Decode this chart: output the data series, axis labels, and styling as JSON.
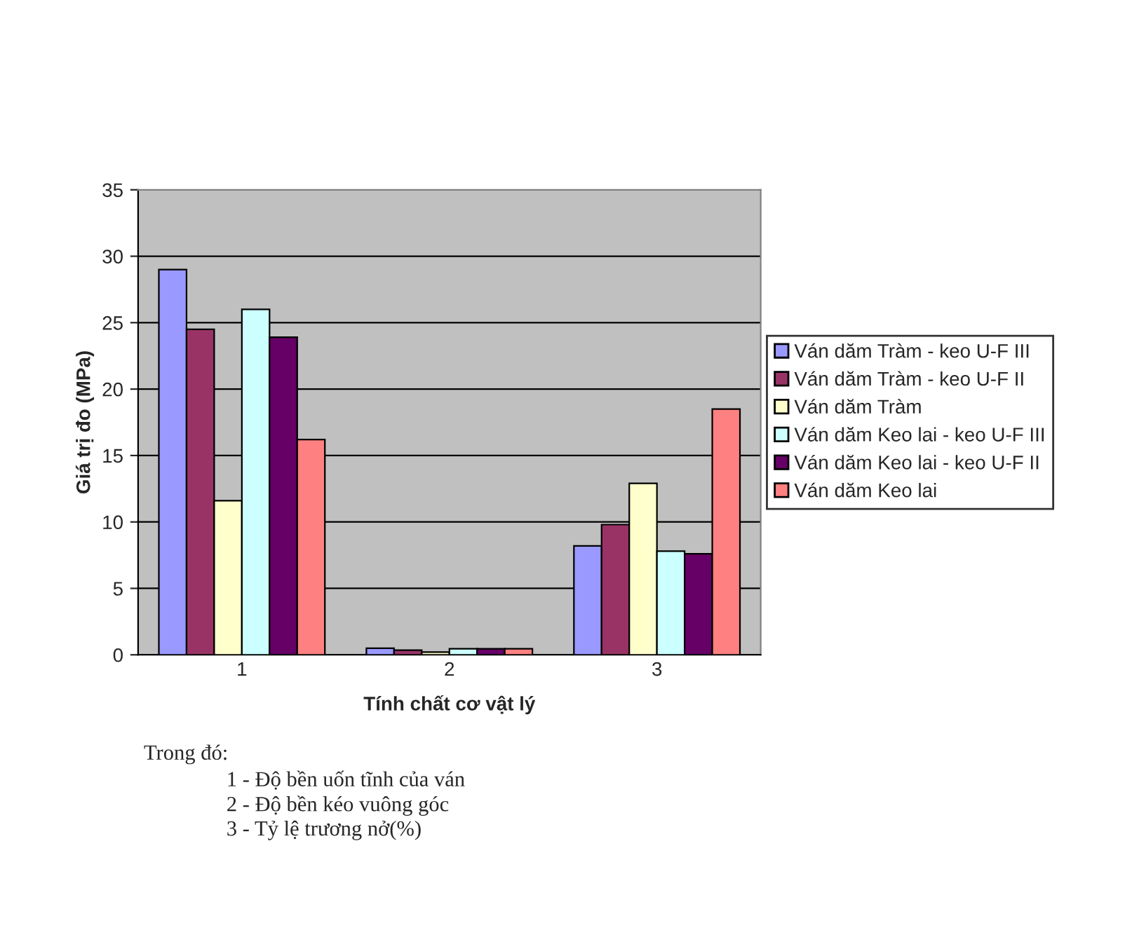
{
  "chart_data": {
    "type": "bar",
    "xlabel": "Tính chất cơ vật lý",
    "ylabel": "Giá trị đo (MPa)",
    "categories": [
      "1",
      "2",
      "3"
    ],
    "series": [
      {
        "name": "Ván dăm Tràm - keo U-F III",
        "color": "#9999ff",
        "values": [
          29.0,
          0.5,
          8.2
        ]
      },
      {
        "name": "Ván dăm Tràm - keo U-F II",
        "color": "#993366",
        "values": [
          24.5,
          0.35,
          9.8
        ]
      },
      {
        "name": "Ván dăm Tràm",
        "color": "#ffffcc",
        "values": [
          11.6,
          0.2,
          12.9
        ]
      },
      {
        "name": "Ván dăm Keo lai - keo U-F III",
        "color": "#ccffff",
        "values": [
          26.0,
          0.45,
          7.8
        ]
      },
      {
        "name": "Ván dăm Keo lai - keo U-F II",
        "color": "#660066",
        "values": [
          23.9,
          0.45,
          7.6
        ]
      },
      {
        "name": "Ván dăm Keo lai",
        "color": "#ff8080",
        "values": [
          16.2,
          0.45,
          18.5
        ]
      }
    ],
    "ylim": [
      0,
      35
    ],
    "yticks": [
      0,
      5,
      10,
      15,
      20,
      25,
      30,
      35
    ],
    "grid": "y",
    "legend": "right",
    "annotations": [
      "Trong đó:",
      "1 - Độ bền uốn tĩnh của ván",
      "2 - Độ bền kéo vuông góc",
      "3 - Tỷ lệ trương nở(%)"
    ]
  }
}
